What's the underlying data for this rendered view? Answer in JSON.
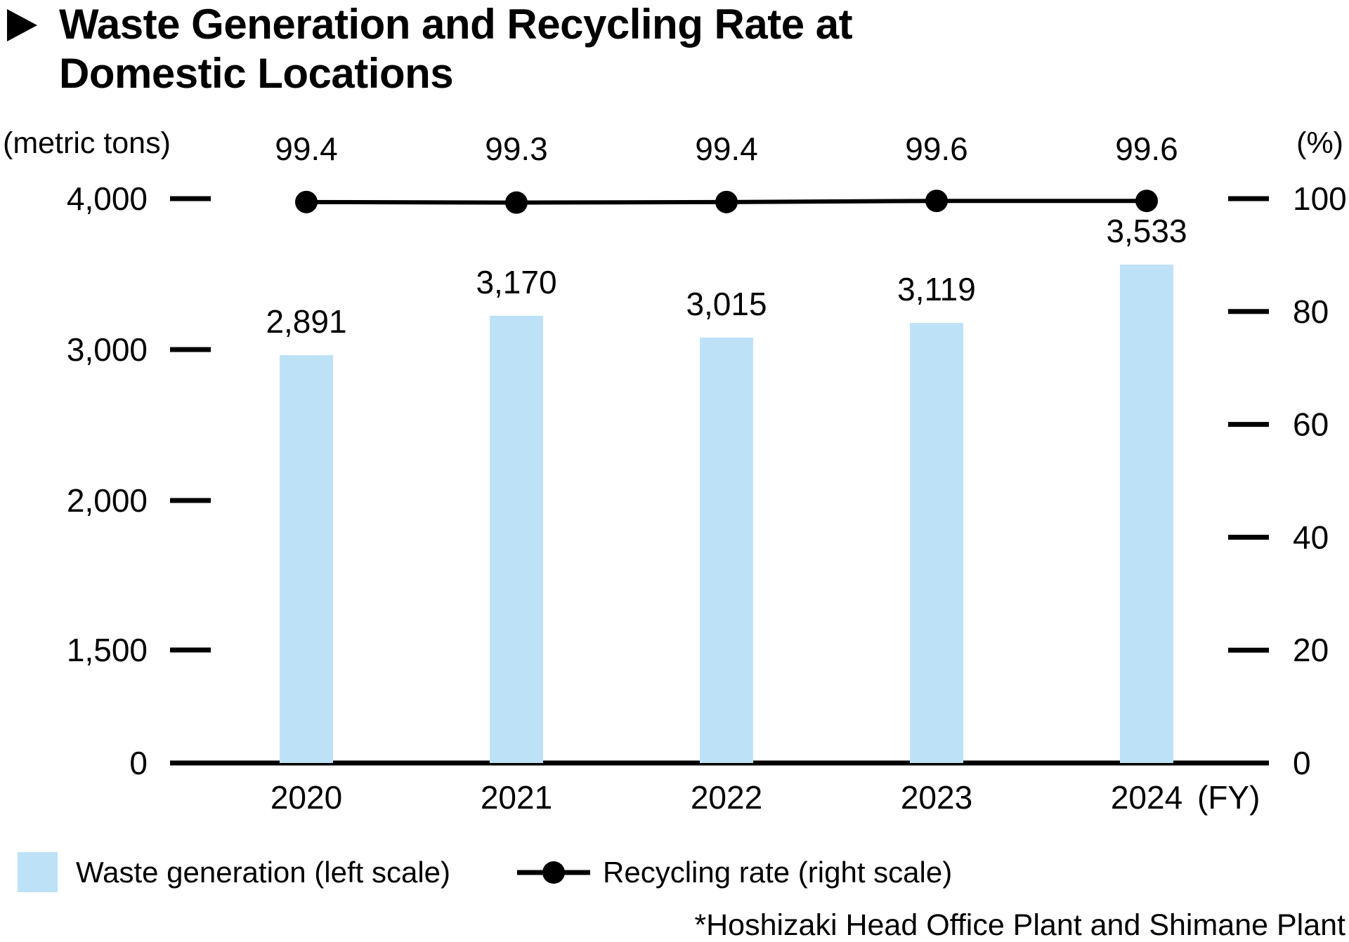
{
  "title": {
    "line1": "Waste Generation and Recycling Rate at",
    "line2": "Domestic Locations",
    "marker_icon": "right-pointing-triangle"
  },
  "axes": {
    "left_unit_label": "(metric tons)",
    "right_unit_label": "(%)",
    "x_unit_label": "(FY)"
  },
  "legend": {
    "items": [
      {
        "swatch": "bar-square",
        "label": "Waste generation (left scale)"
      },
      {
        "swatch": "line-dot-marker",
        "label": "Recycling rate (right scale)"
      }
    ],
    "position": "bottom"
  },
  "footnote": "*Hoshizaki Head Office Plant and Shimane Plant",
  "colors": {
    "bar_fill": "#BDE2F7",
    "line_color": "#000000",
    "text_color": "#000000",
    "background": "#FFFFFF"
  },
  "chart_data": {
    "type": "bar",
    "subtype": "combo-bar-line-dual-axis",
    "title": "Waste Generation and Recycling Rate at Domestic Locations",
    "categories": [
      "2020",
      "2021",
      "2022",
      "2023",
      "2024"
    ],
    "series": [
      {
        "name": "Waste generation (left scale)",
        "type": "bar",
        "axis": "left",
        "values": [
          2891,
          3170,
          3015,
          3119,
          3533
        ],
        "labels": [
          "2,891",
          "3,170",
          "3,015",
          "3,119",
          "3,533"
        ]
      },
      {
        "name": "Recycling rate (right scale)",
        "type": "line",
        "axis": "right",
        "values": [
          99.4,
          99.3,
          99.4,
          99.6,
          99.6
        ],
        "labels": [
          "99.4",
          "99.3",
          "99.4",
          "99.6",
          "99.6"
        ]
      }
    ],
    "left_axis": {
      "label": "(metric tons)",
      "tick_labels": [
        "4,000",
        "3,000",
        "2,000",
        "1,500",
        "0"
      ],
      "range": [
        0,
        4000
      ],
      "note": "ticks drawn with non-uniform spacing; 1,500 tick aligns with right-axis 20 tick"
    },
    "right_axis": {
      "label": "(%)",
      "tick_labels": [
        "100",
        "80",
        "60",
        "40",
        "20",
        "0"
      ],
      "range": [
        0,
        100
      ]
    },
    "x_axis": {
      "label": "(FY)"
    },
    "grid": false,
    "legend_position": "bottom",
    "annotations": [
      "*Hoshizaki Head Office Plant and Shimane Plant"
    ]
  }
}
